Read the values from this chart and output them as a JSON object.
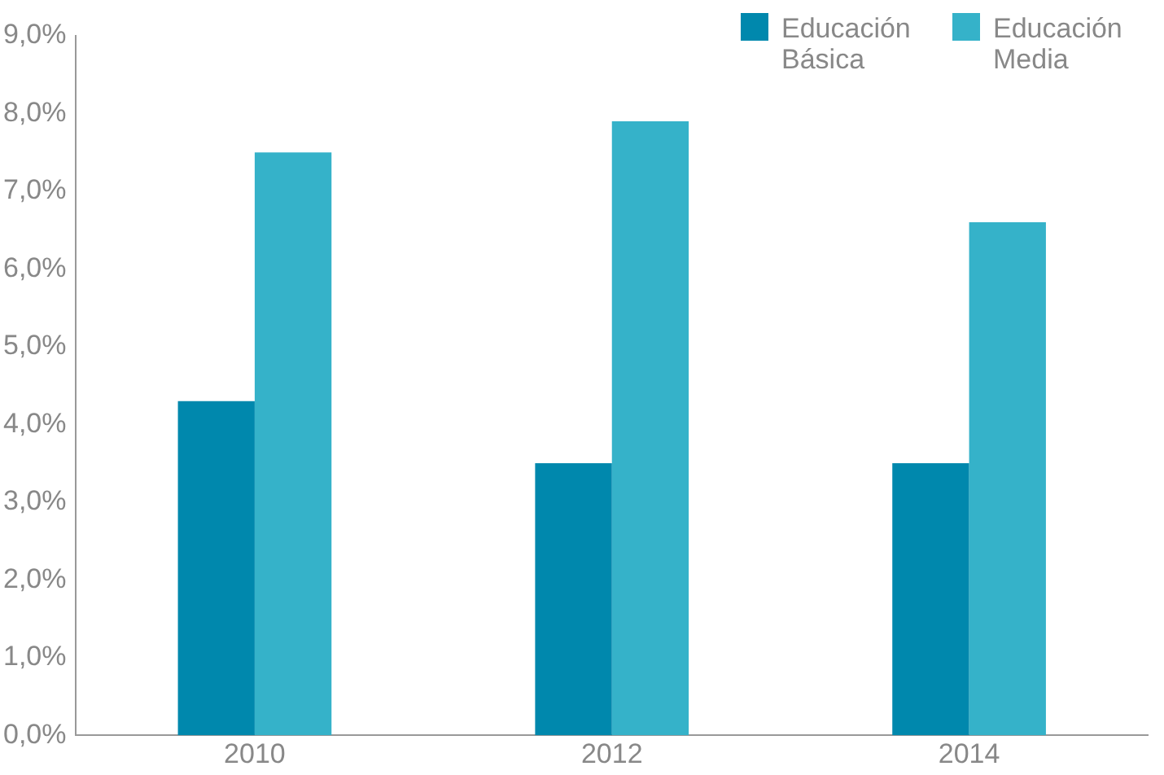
{
  "chart_data": {
    "type": "bar",
    "categories": [
      "2010",
      "2012",
      "2014"
    ],
    "series": [
      {
        "name": "Educación Básica",
        "color": "#0088ad",
        "values": [
          4.3,
          3.5,
          3.5
        ]
      },
      {
        "name": "Educación Media",
        "color": "#35b2c9",
        "values": [
          7.5,
          7.9,
          6.6
        ]
      }
    ],
    "ylim": [
      0,
      9
    ],
    "yticks": [
      {
        "value": 0,
        "label": "0,0%"
      },
      {
        "value": 1,
        "label": "1,0%"
      },
      {
        "value": 2,
        "label": "2,0%"
      },
      {
        "value": 3,
        "label": "3,0%"
      },
      {
        "value": 4,
        "label": "4,0%"
      },
      {
        "value": 5,
        "label": "5,0%"
      },
      {
        "value": 6,
        "label": "6,0%"
      },
      {
        "value": 7,
        "label": "7,0%"
      },
      {
        "value": 8,
        "label": "8,0%"
      },
      {
        "value": 9,
        "label": "9,0%"
      }
    ],
    "grid": false,
    "legend": "top right"
  }
}
